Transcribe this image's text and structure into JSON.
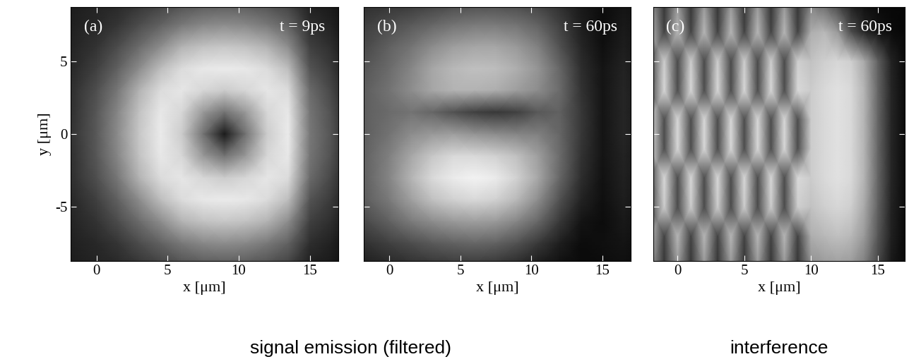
{
  "chart_data": [
    {
      "type": "heatmap",
      "annotations": [
        "(a)",
        "t = 9ps"
      ],
      "x_label": "x [μm]",
      "y_label": "y [μm]",
      "xlim": [
        -1.8,
        17
      ],
      "ylim": [
        -8.7,
        8.7
      ],
      "xticks": [
        0,
        5,
        10,
        15
      ],
      "yticks": [
        -5,
        0,
        5
      ],
      "color": "gray",
      "zlim": [
        0,
        100
      ],
      "x": [
        -3,
        -1.5,
        0,
        1.5,
        3,
        4.5,
        6,
        7.5,
        9,
        10.5,
        12,
        13.5,
        15,
        16.5,
        18,
        19.5
      ],
      "y": [
        9,
        7.5,
        6,
        4.5,
        3,
        1.5,
        0,
        -1.5,
        -3,
        -4.5,
        -6,
        -7.5,
        -9
      ],
      "cells": [
        [
          10,
          12,
          14,
          16,
          20,
          25,
          31,
          34,
          35,
          34,
          31,
          25,
          12,
          10,
          4,
          4
        ],
        [
          11,
          13,
          16,
          21,
          30,
          38,
          47,
          53,
          55,
          53,
          47,
          38,
          18,
          13,
          5,
          4
        ],
        [
          12,
          15,
          20,
          30,
          42,
          55,
          70,
          76,
          78,
          76,
          70,
          55,
          25,
          18,
          6,
          5
        ],
        [
          14,
          17,
          25,
          38,
          55,
          74,
          86,
          91,
          92,
          91,
          86,
          74,
          33,
          23,
          8,
          5
        ],
        [
          15,
          20,
          31,
          47,
          70,
          86,
          90,
          84,
          80,
          84,
          90,
          86,
          42,
          28,
          9,
          6
        ],
        [
          15,
          21,
          34,
          53,
          76,
          91,
          84,
          60,
          45,
          60,
          84,
          91,
          46,
          32,
          10,
          6
        ],
        [
          15,
          22,
          35,
          55,
          78,
          92,
          80,
          45,
          10,
          45,
          80,
          92,
          47,
          33,
          10,
          7
        ],
        [
          15,
          21,
          34,
          53,
          76,
          91,
          84,
          60,
          45,
          60,
          84,
          91,
          46,
          32,
          10,
          6
        ],
        [
          15,
          20,
          31,
          47,
          70,
          86,
          90,
          84,
          80,
          84,
          90,
          86,
          42,
          28,
          9,
          6
        ],
        [
          14,
          17,
          25,
          38,
          55,
          74,
          86,
          91,
          92,
          91,
          86,
          74,
          33,
          23,
          8,
          5
        ],
        [
          12,
          15,
          20,
          30,
          42,
          55,
          70,
          76,
          78,
          76,
          70,
          55,
          25,
          18,
          6,
          5
        ],
        [
          11,
          13,
          16,
          21,
          30,
          38,
          47,
          53,
          55,
          53,
          47,
          38,
          18,
          13,
          5,
          4
        ],
        [
          10,
          12,
          14,
          16,
          20,
          25,
          31,
          34,
          35,
          34,
          31,
          25,
          12,
          10,
          4,
          4
        ]
      ]
    },
    {
      "type": "heatmap",
      "annotations": [
        "(b)",
        "t = 60ps"
      ],
      "x_label": "x [μm]",
      "xlim": [
        -1.8,
        17
      ],
      "ylim": [
        -8.7,
        8.7
      ],
      "xticks": [
        0,
        5,
        10,
        15
      ],
      "yticks": [
        -5,
        0,
        5
      ],
      "tick_labels": "x",
      "color": "gray",
      "zlim": [
        0,
        100
      ],
      "x": [
        -3,
        -1.5,
        0,
        1.5,
        3,
        4.5,
        6,
        7.5,
        9,
        10.5,
        12,
        13.5,
        15,
        16.5,
        18,
        19.5
      ],
      "y": [
        9,
        7.5,
        6,
        4.5,
        3,
        1.5,
        0,
        -1.5,
        -3,
        -4.5,
        -6,
        -7.5,
        -9
      ],
      "cells": [
        [
          15,
          18,
          20,
          22,
          25,
          28,
          30,
          30,
          28,
          25,
          18,
          10,
          5,
          8,
          5,
          3
        ],
        [
          20,
          25,
          30,
          35,
          40,
          45,
          48,
          48,
          45,
          38,
          25,
          12,
          5,
          10,
          6,
          3
        ],
        [
          25,
          30,
          38,
          45,
          55,
          62,
          65,
          65,
          60,
          50,
          32,
          15,
          6,
          12,
          6,
          3
        ],
        [
          28,
          35,
          42,
          52,
          65,
          72,
          75,
          74,
          68,
          58,
          40,
          18,
          8,
          14,
          6,
          3
        ],
        [
          30,
          38,
          45,
          55,
          65,
          70,
          70,
          68,
          62,
          55,
          42,
          20,
          8,
          15,
          7,
          3
        ],
        [
          30,
          38,
          42,
          45,
          40,
          32,
          25,
          22,
          25,
          35,
          38,
          22,
          8,
          15,
          7,
          3
        ],
        [
          30,
          38,
          45,
          55,
          60,
          62,
          58,
          55,
          52,
          50,
          40,
          22,
          8,
          15,
          7,
          3
        ],
        [
          30,
          40,
          50,
          65,
          78,
          85,
          85,
          82,
          75,
          62,
          42,
          20,
          8,
          14,
          6,
          3
        ],
        [
          30,
          40,
          52,
          70,
          85,
          92,
          95,
          92,
          82,
          65,
          40,
          18,
          7,
          13,
          6,
          3
        ],
        [
          28,
          38,
          48,
          62,
          75,
          82,
          85,
          82,
          72,
          55,
          32,
          14,
          6,
          12,
          6,
          3
        ],
        [
          22,
          30,
          38,
          48,
          55,
          60,
          62,
          60,
          52,
          40,
          22,
          8,
          5,
          10,
          5,
          3
        ],
        [
          15,
          20,
          25,
          30,
          35,
          38,
          40,
          38,
          32,
          22,
          12,
          5,
          6,
          8,
          4,
          3
        ],
        [
          10,
          12,
          15,
          18,
          20,
          22,
          22,
          20,
          16,
          10,
          6,
          4,
          5,
          6,
          3,
          3
        ]
      ]
    },
    {
      "type": "heatmap",
      "annotations": [
        "(c)",
        "t = 60ps"
      ],
      "x_label": "x [μm]",
      "xlim": [
        -1.8,
        17
      ],
      "ylim": [
        -8.7,
        8.7
      ],
      "xticks": [
        0,
        5,
        10,
        15
      ],
      "yticks": [
        -5,
        0,
        5
      ],
      "tick_labels": "x",
      "color": "gray",
      "zlim": [
        0,
        100
      ],
      "x": [
        -2,
        -1,
        0,
        1,
        2,
        3,
        4,
        5,
        6,
        7,
        8,
        9,
        10,
        11,
        12,
        13,
        14,
        15,
        16,
        17,
        18
      ],
      "y": [
        9,
        7,
        5,
        3,
        1,
        -1,
        -3,
        -5,
        -7,
        -9
      ],
      "cells": [
        [
          60,
          21,
          60,
          21,
          60,
          21,
          60,
          21,
          60,
          21,
          60,
          21,
          50,
          40,
          25,
          12,
          6,
          4,
          3,
          3,
          3
        ],
        [
          72,
          26,
          72,
          26,
          72,
          26,
          72,
          26,
          72,
          26,
          72,
          26,
          68,
          72,
          60,
          30,
          15,
          8,
          5,
          3,
          3
        ],
        [
          29,
          81,
          29,
          81,
          29,
          81,
          29,
          81,
          29,
          81,
          29,
          81,
          76,
          81,
          84,
          81,
          66,
          38,
          14,
          5,
          3
        ],
        [
          30,
          85,
          30,
          85,
          30,
          85,
          30,
          85,
          30,
          85,
          30,
          85,
          80,
          85,
          88,
          85,
          70,
          40,
          15,
          5,
          3
        ],
        [
          85,
          30,
          85,
          30,
          85,
          30,
          85,
          30,
          85,
          30,
          85,
          30,
          80,
          85,
          88,
          85,
          70,
          40,
          15,
          5,
          3
        ],
        [
          85,
          30,
          85,
          30,
          85,
          30,
          85,
          30,
          85,
          30,
          85,
          30,
          80,
          85,
          88,
          85,
          70,
          40,
          15,
          5,
          3
        ],
        [
          30,
          85,
          30,
          85,
          30,
          85,
          30,
          85,
          30,
          85,
          30,
          85,
          80,
          85,
          88,
          85,
          70,
          40,
          15,
          5,
          3
        ],
        [
          29,
          81,
          29,
          81,
          29,
          81,
          29,
          81,
          29,
          81,
          29,
          81,
          76,
          81,
          84,
          81,
          66,
          38,
          14,
          5,
          3
        ],
        [
          72,
          26,
          72,
          26,
          72,
          26,
          72,
          26,
          72,
          26,
          72,
          26,
          68,
          72,
          75,
          72,
          60,
          34,
          13,
          4,
          3
        ],
        [
          60,
          21,
          60,
          21,
          60,
          21,
          60,
          21,
          60,
          21,
          60,
          21,
          56,
          60,
          62,
          60,
          49,
          28,
          10,
          4,
          3
        ]
      ]
    }
  ],
  "captions": [
    "signal emission (filtered)",
    "interference"
  ]
}
